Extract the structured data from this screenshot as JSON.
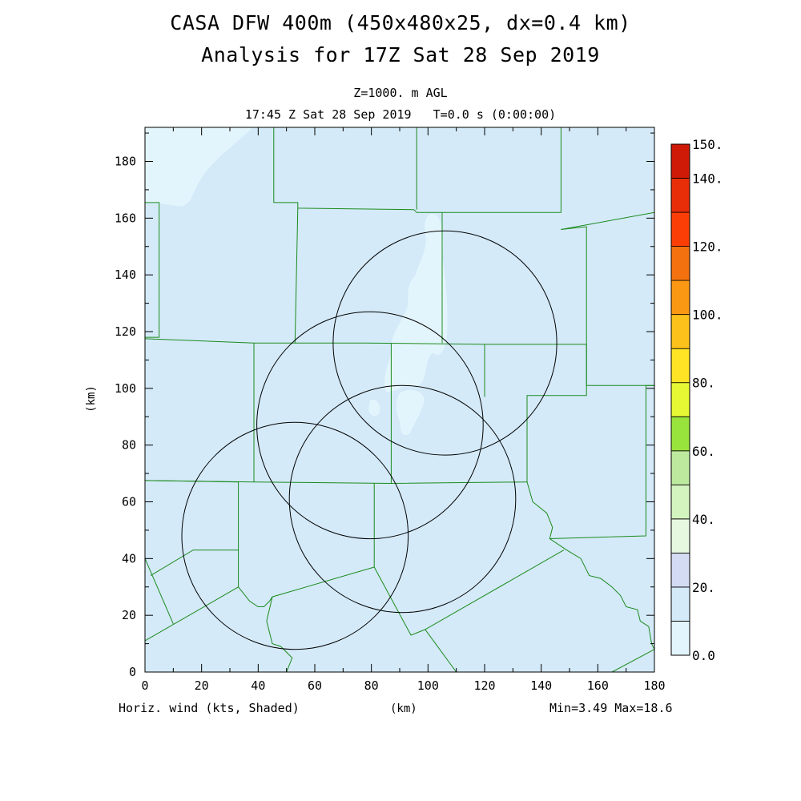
{
  "chart_data": {
    "type": "heatmap",
    "title": "CASA DFW 400m (450x480x25, dx=0.4 km)",
    "subtitle": "Analysis for 17Z Sat 28 Sep 2019",
    "level_label": "Z=1000. m AGL",
    "time_label": "17:45 Z Sat 28 Sep 2019   T=0.0 s (0:00:00)",
    "xlabel": "(km)",
    "ylabel": "(km)",
    "xlim": [
      0,
      180
    ],
    "ylim": [
      0,
      192
    ],
    "x_ticks": [
      0,
      20,
      40,
      60,
      80,
      100,
      120,
      140,
      160,
      180
    ],
    "y_ticks": [
      0,
      20,
      40,
      60,
      80,
      100,
      120,
      140,
      160,
      180
    ],
    "field_label": "Horiz. wind (kts, Shaded)",
    "stats_label": "Min=3.49 Max=18.6",
    "field_min": 3.49,
    "field_max": 18.6,
    "dominant_range": [
      10,
      20
    ],
    "colorbar": {
      "levels": [
        0,
        10,
        20,
        30,
        40,
        50,
        60,
        70,
        80,
        90,
        100,
        110,
        120,
        130,
        140,
        150
      ],
      "tick_labels": [
        "0.0",
        "20.",
        "40.",
        "60.",
        "80.",
        "100.",
        "120.",
        "140.",
        "150."
      ],
      "tick_values": [
        0,
        20,
        40,
        60,
        80,
        100,
        120,
        140,
        150
      ],
      "colors": [
        "#e3f5fc",
        "#d4eaf9",
        "#d4dcf4",
        "#e7f8e1",
        "#d4f4bf",
        "#bde99f",
        "#99e33d",
        "#e6f834",
        "#ffe425",
        "#fcc11b",
        "#fa9813",
        "#f3710e",
        "#fb3e06",
        "#e82d09",
        "#d01a08",
        "#b40000"
      ]
    },
    "radar_rings": [
      {
        "center": [
          106,
          116
        ],
        "radius_km": 39.5
      },
      {
        "center": [
          79.5,
          87
        ],
        "radius_km": 40
      },
      {
        "center": [
          91,
          61
        ],
        "radius_km": 40
      },
      {
        "center": [
          53,
          48
        ],
        "radius_km": 40
      }
    ],
    "county_lines": [
      [
        [
          0,
          165.5
        ],
        [
          5,
          165.5
        ],
        [
          5,
          118
        ],
        [
          0,
          118
        ]
      ],
      [
        [
          0,
          117.5
        ],
        [
          38.5,
          116
        ],
        [
          78,
          116
        ],
        [
          120,
          115.5
        ],
        [
          156,
          115.5
        ]
      ],
      [
        [
          45.5,
          192
        ],
        [
          45.5,
          165.5
        ],
        [
          54,
          165.5
        ],
        [
          54,
          163.5
        ],
        [
          95,
          163
        ],
        [
          96,
          162
        ],
        [
          147,
          162
        ],
        [
          147,
          192
        ]
      ],
      [
        [
          54,
          163.5
        ],
        [
          53,
          116
        ]
      ],
      [
        [
          96,
          192
        ],
        [
          96,
          163
        ]
      ],
      [
        [
          105,
          162
        ],
        [
          105,
          116
        ]
      ],
      [
        [
          147,
          156
        ],
        [
          156,
          157
        ],
        [
          156,
          101
        ],
        [
          180,
          101
        ]
      ],
      [
        [
          147,
          156
        ],
        [
          180,
          162
        ]
      ],
      [
        [
          156,
          115.5
        ],
        [
          156,
          97.5
        ],
        [
          135,
          97.5
        ],
        [
          135,
          67
        ]
      ],
      [
        [
          120,
          115.5
        ],
        [
          120,
          97
        ]
      ],
      [
        [
          87,
          116
        ],
        [
          87,
          66.5
        ]
      ],
      [
        [
          38.5,
          116
        ],
        [
          38.5,
          67
        ]
      ],
      [
        [
          0,
          67.5
        ],
        [
          38.5,
          67
        ],
        [
          87,
          66.5
        ],
        [
          135,
          67
        ]
      ],
      [
        [
          0,
          67.5
        ],
        [
          33,
          67
        ]
      ],
      [
        [
          33,
          67
        ],
        [
          33,
          30
        ]
      ],
      [
        [
          81,
          66.5
        ],
        [
          81,
          37
        ]
      ],
      [
        [
          0,
          40
        ],
        [
          10,
          17
        ]
      ],
      [
        [
          2,
          34
        ],
        [
          17,
          43
        ],
        [
          33,
          43
        ]
      ],
      [
        [
          0,
          11
        ],
        [
          33,
          30
        ],
        [
          37,
          25
        ],
        [
          40,
          23
        ],
        [
          42,
          23
        ],
        [
          44,
          25
        ],
        [
          45,
          26.5
        ],
        [
          81,
          37
        ]
      ],
      [
        [
          45,
          26.5
        ],
        [
          43,
          18
        ],
        [
          45,
          10
        ],
        [
          48,
          9
        ],
        [
          52,
          5
        ],
        [
          50,
          0
        ]
      ],
      [
        [
          81,
          37
        ],
        [
          94,
          13
        ],
        [
          99,
          15
        ],
        [
          148,
          43
        ]
      ],
      [
        [
          99,
          15
        ],
        [
          110,
          0
        ]
      ],
      [
        [
          135,
          67
        ],
        [
          137,
          60
        ],
        [
          142,
          56
        ],
        [
          144,
          51
        ],
        [
          143,
          47
        ],
        [
          149,
          43
        ],
        [
          154,
          40
        ],
        [
          157,
          34
        ],
        [
          161,
          33
        ],
        [
          165,
          30
        ],
        [
          168,
          27
        ],
        [
          170,
          23
        ],
        [
          174,
          22
        ],
        [
          175,
          18
        ],
        [
          178,
          16
        ],
        [
          179,
          10
        ],
        [
          180,
          8
        ]
      ],
      [
        [
          143,
          47
        ],
        [
          177,
          48
        ],
        [
          177,
          101
        ]
      ],
      [
        [
          177,
          101
        ],
        [
          180,
          101
        ]
      ],
      [
        [
          165,
          0
        ],
        [
          180,
          8
        ]
      ]
    ]
  }
}
